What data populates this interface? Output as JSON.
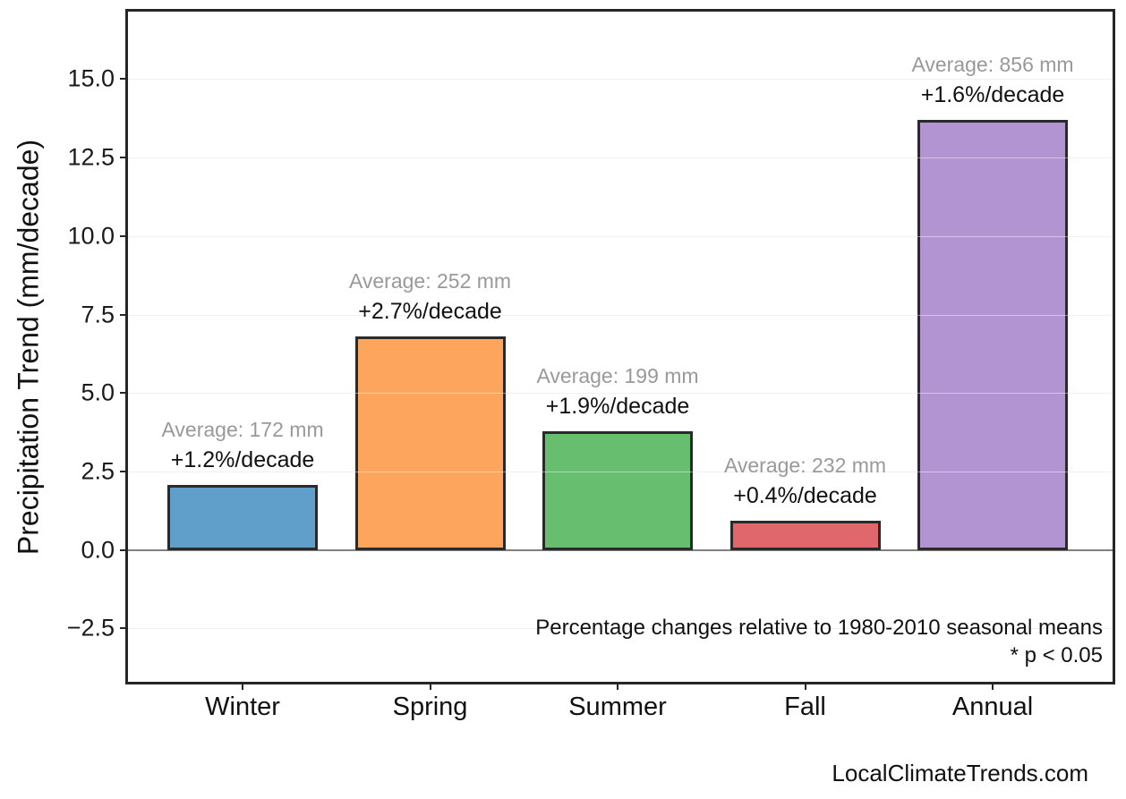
{
  "chart_data": {
    "type": "bar",
    "title": "",
    "xlabel": "",
    "ylabel": "Precipitation Trend (mm/decade)",
    "categories": [
      "Winter",
      "Spring",
      "Summer",
      "Fall",
      "Annual"
    ],
    "values": [
      2.06,
      6.8,
      3.78,
      0.93,
      13.7
    ],
    "averages_mm": [
      172,
      252,
      199,
      232,
      856
    ],
    "annotations": [
      {
        "average": "Average: 172 mm",
        "trend": "+1.2%/decade"
      },
      {
        "average": "Average: 252 mm",
        "trend": "+2.7%/decade"
      },
      {
        "average": "Average: 199 mm",
        "trend": "+1.9%/decade"
      },
      {
        "average": "Average: 232 mm",
        "trend": "+0.4%/decade"
      },
      {
        "average": "Average: 856 mm",
        "trend": "+1.6%/decade"
      }
    ],
    "bar_colors": [
      "#619FCB",
      "#FDA55C",
      "#67BE6E",
      "#E0686D",
      "#B294D2"
    ],
    "bar_edge_color": "#2a2a2a",
    "yticks": [
      -2.5,
      0.0,
      2.5,
      5.0,
      7.5,
      10.0,
      12.5,
      15.0
    ],
    "ytick_labels": [
      "−2.5",
      "0.0",
      "2.5",
      "5.0",
      "7.5",
      "10.0",
      "12.5",
      "15.0"
    ],
    "ylim": [
      -4.2,
      17.15
    ],
    "grid": true,
    "zero_line": true,
    "legend": null,
    "notes": [
      "Percentage changes relative to 1980-2010 seasonal means",
      "* p < 0.05"
    ],
    "colors": {
      "average_label": "#999999",
      "trend_label": "#111111",
      "grid": "#e3e3e3",
      "zero_line": "#808080",
      "axis": "#262626"
    }
  },
  "footer": {
    "watermark": "LocalClimateTrends.com"
  }
}
